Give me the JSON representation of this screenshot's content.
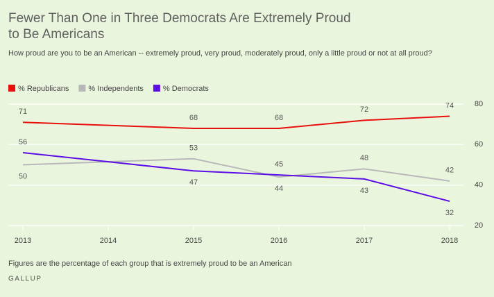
{
  "chart_data": {
    "type": "line",
    "title": "Fewer Than One in Three Democrats Are Extremely Proud to Be Americans",
    "subtitle": "How proud are you to be an American -- extremely proud, very proud, moderately proud, only a little proud or not at all proud?",
    "x": [
      2013,
      2015,
      2016,
      2017,
      2018
    ],
    "series": [
      {
        "name": "% Republicans",
        "color": "#e8100c",
        "values": [
          71,
          68,
          68,
          72,
          74
        ]
      },
      {
        "name": "% Independents",
        "color": "#b8b8b8",
        "values": [
          50,
          53,
          44,
          48,
          42
        ]
      },
      {
        "name": "% Democrats",
        "color": "#5b0ee6",
        "values": [
          56,
          47,
          45,
          43,
          32
        ]
      }
    ],
    "xlim": [
      2013,
      2018
    ],
    "xticks": [
      2013,
      2014,
      2015,
      2016,
      2017,
      2018
    ],
    "ylim": [
      20,
      80
    ],
    "yticks": [
      20,
      40,
      60,
      80
    ],
    "grid": true,
    "note": "Figures are the percentage of each group that is extremely proud to be an American",
    "source": "GALLUP"
  }
}
